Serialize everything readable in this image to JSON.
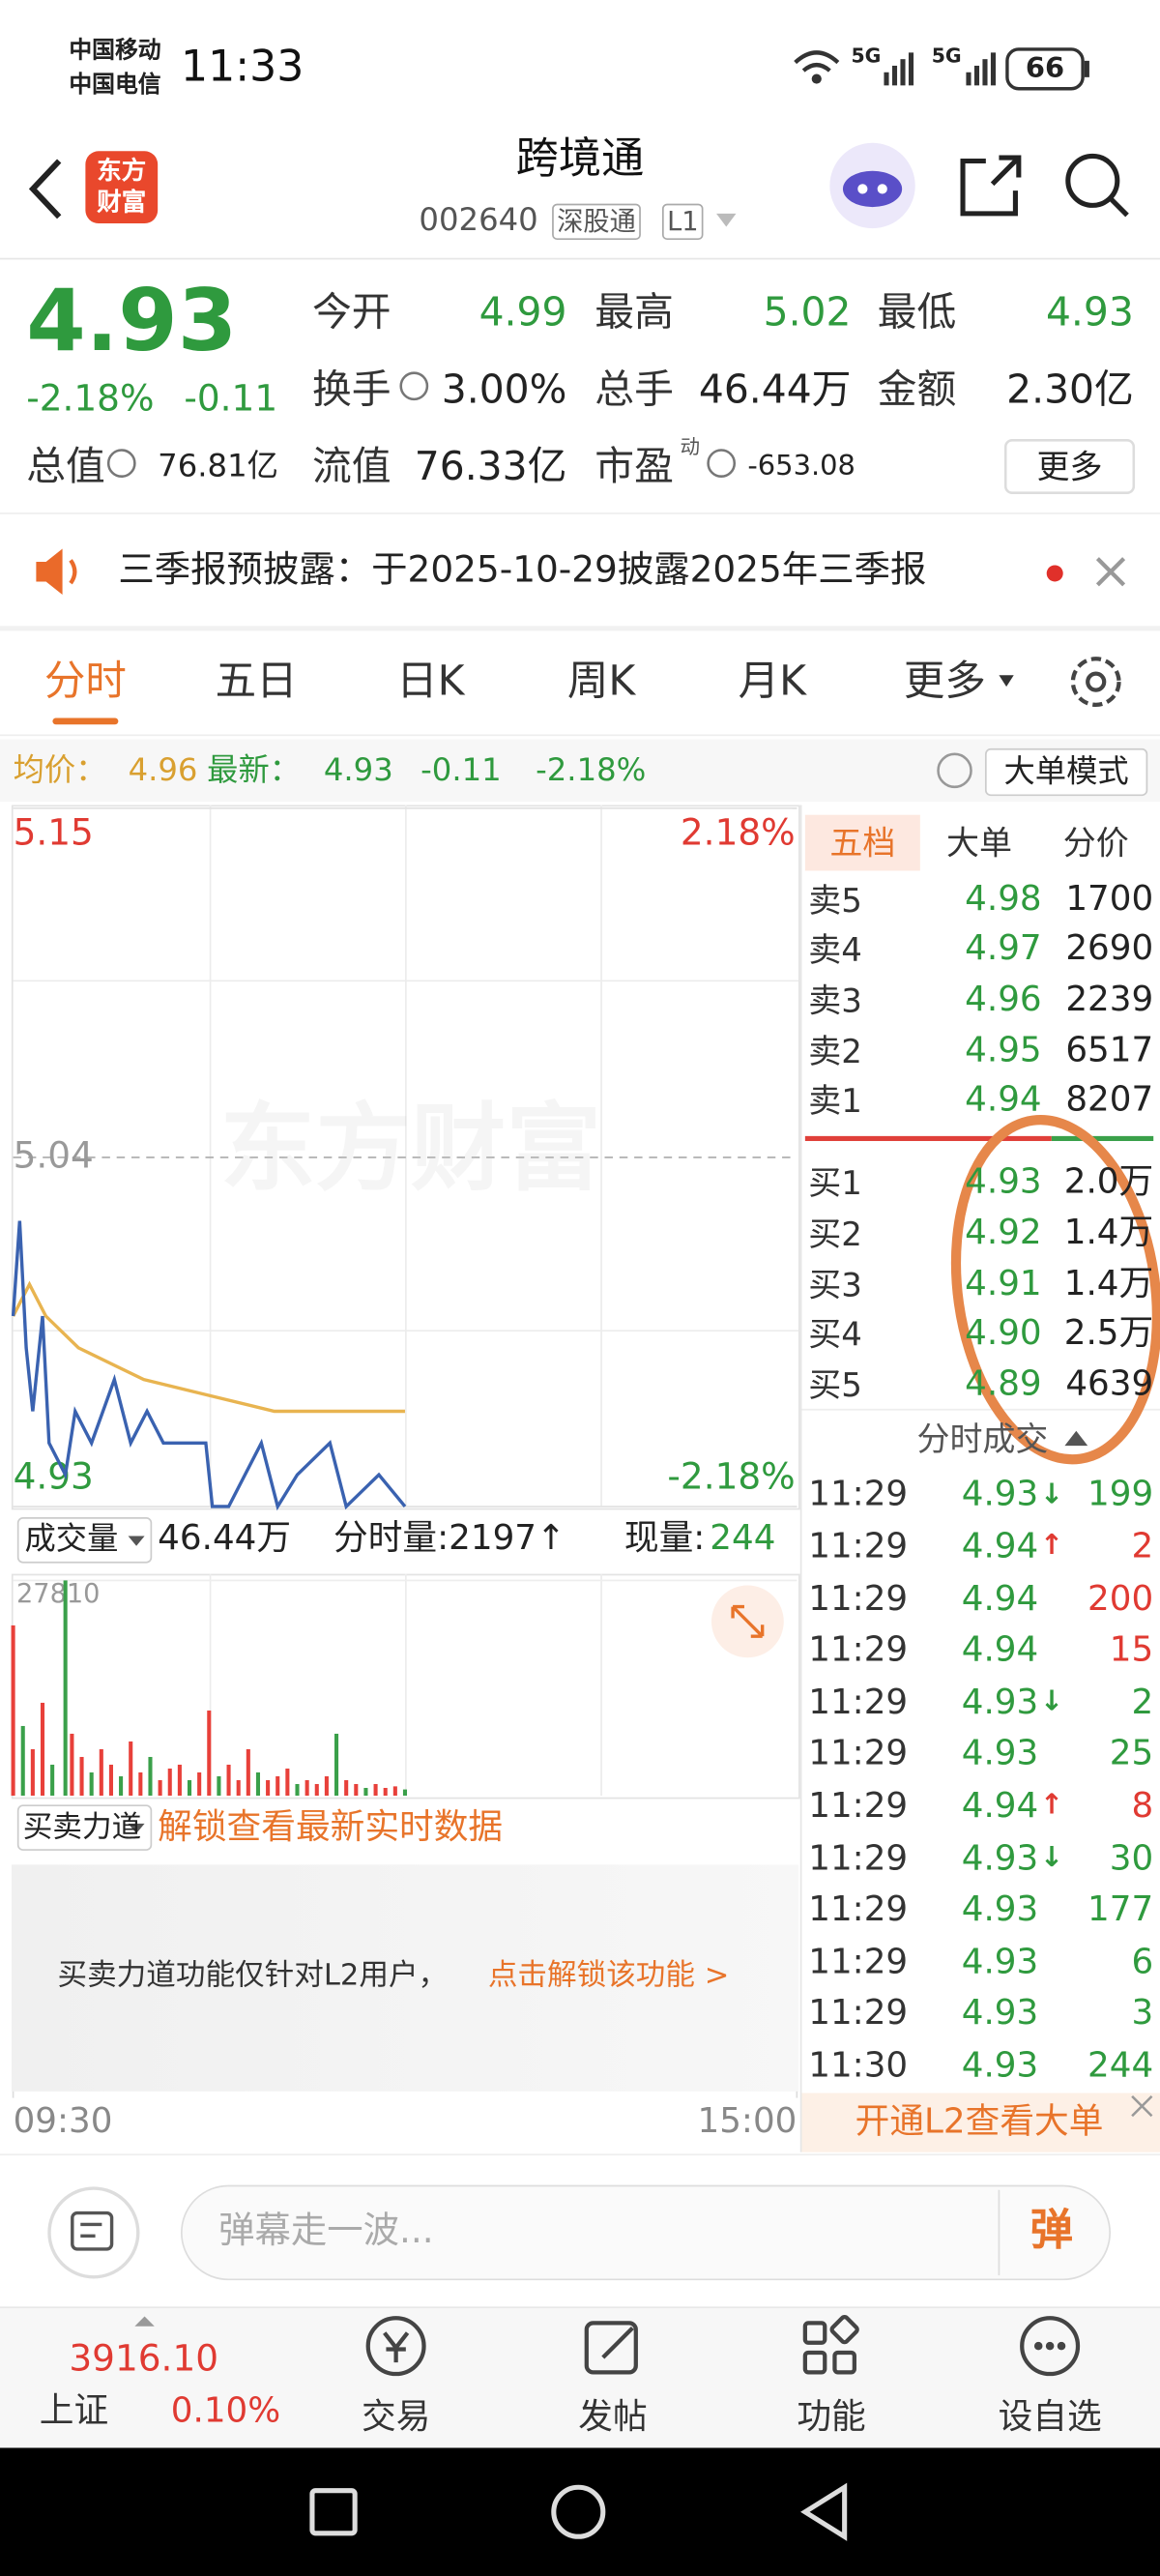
{
  "status_bar": {
    "carriers": [
      "中国移动",
      "中国电信"
    ],
    "time": "11:33",
    "network": [
      "5G",
      "5G"
    ],
    "battery": "66"
  },
  "header": {
    "logo": [
      "东方",
      "财富"
    ],
    "title": "跨境通",
    "code": "002640",
    "tags": [
      "深股通",
      "L1"
    ]
  },
  "quote": {
    "price": "4.93",
    "change_pct": "-2.18%",
    "change": "-0.11",
    "fields": [
      {
        "label": "今开",
        "value": "4.99"
      },
      {
        "label": "最高",
        "value": "5.02"
      },
      {
        "label": "最低",
        "value": "4.93"
      },
      {
        "label": "换手",
        "value": "3.00%"
      },
      {
        "label": "总手",
        "value": "46.44万"
      },
      {
        "label": "金额",
        "value": "2.30亿"
      },
      {
        "label": "总值",
        "value": "76.81亿"
      },
      {
        "label": "流值",
        "value": "76.33亿"
      },
      {
        "label": "市盈",
        "sup": "动",
        "value": "-653.08"
      }
    ],
    "more": "更多"
  },
  "notice": {
    "text": "三季报预披露：于2025-10-29披露2025年三季报"
  },
  "tabs": [
    "分时",
    "五日",
    "日K",
    "周K",
    "月K",
    "更多"
  ],
  "info_bar": {
    "avg_label": "均价：",
    "avg": "4.96",
    "latest_label": "最新：",
    "latest": "4.93",
    "change": "-0.11",
    "change_pct": "-2.18%",
    "mode": "大单模式"
  },
  "watermark": "东方财富",
  "chart_data": [
    {
      "type": "line",
      "xlim": [
        0,
        240
      ],
      "xticks": [
        {
          "value": 0,
          "label": "09:30"
        },
        {
          "value": 240,
          "label": "15:00"
        }
      ],
      "ylim": [
        4.93,
        5.15
      ],
      "yticks": [
        5.15,
        5.04,
        4.93
      ],
      "y2lim": [
        -2.18,
        2.18
      ],
      "y2ticks": [
        {
          "value": 2.18,
          "label": "2.18%"
        },
        {
          "value": -2.18,
          "label": "-2.18%"
        }
      ],
      "series": [
        {
          "color": "#3a62b0",
          "x": [
            0,
            2,
            4,
            6,
            9,
            11,
            16,
            19,
            24,
            31,
            36,
            41,
            46,
            51,
            59,
            61,
            66,
            71,
            76,
            81,
            87,
            97,
            102,
            112,
            120
          ],
          "values": [
            4.99,
            5.02,
            4.98,
            4.96,
            4.99,
            4.95,
            4.94,
            4.96,
            4.95,
            4.97,
            4.95,
            4.96,
            4.95,
            4.95,
            4.95,
            4.93,
            4.93,
            4.94,
            4.95,
            4.93,
            4.94,
            4.95,
            4.93,
            4.94,
            4.93
          ]
        },
        {
          "color": "#e8b450",
          "x": [
            0,
            5,
            10,
            20,
            40,
            60,
            80,
            100,
            120
          ],
          "values": [
            4.99,
            5.0,
            4.99,
            4.98,
            4.97,
            4.965,
            4.96,
            4.96,
            4.96
          ]
        }
      ]
    },
    {
      "type": "bar",
      "xlim": [
        0,
        240
      ],
      "ylim": [
        0,
        27810
      ],
      "yticks": [
        27810
      ],
      "x": [
        0,
        3,
        6,
        9,
        12,
        16,
        18,
        21,
        24,
        27,
        30,
        33,
        36,
        39,
        42,
        45,
        48,
        51,
        54,
        57,
        60,
        63,
        66,
        69,
        72,
        75,
        78,
        81,
        84,
        87,
        90,
        93,
        96,
        99,
        102,
        105,
        108,
        111,
        114,
        117,
        120
      ],
      "values": [
        22000,
        9000,
        6000,
        12000,
        4000,
        27810,
        8000,
        5000,
        3000,
        6000,
        4000,
        2500,
        7000,
        3000,
        5000,
        2000,
        3500,
        4000,
        2000,
        3000,
        11000,
        2500,
        4000,
        2000,
        6000,
        3000,
        2000,
        2500,
        3500,
        1500,
        2000,
        1500,
        2500,
        8000,
        2000,
        1500,
        1000,
        1500,
        1000,
        1200,
        800
      ],
      "colors": [
        "#e8403a",
        "#3aa04a",
        "#e8403a",
        "#e8403a",
        "#3aa04a",
        "#3aa04a",
        "#e8403a",
        "#e8403a",
        "#3aa04a",
        "#e8403a",
        "#e8403a",
        "#3aa04a",
        "#e8403a",
        "#e8403a",
        "#3aa04a",
        "#e8403a",
        "#e8403a",
        "#e8403a",
        "#3aa04a",
        "#e8403a",
        "#e8403a",
        "#3aa04a",
        "#e8403a",
        "#e8403a",
        "#e8403a",
        "#3aa04a",
        "#e8403a",
        "#e8403a",
        "#e8403a",
        "#3aa04a",
        "#e8403a",
        "#e8403a",
        "#e8403a",
        "#3aa04a",
        "#e8403a",
        "#e8403a",
        "#3aa04a",
        "#e8403a",
        "#e8403a",
        "#e8403a",
        "#3aa04a"
      ]
    }
  ],
  "volume_bar": {
    "label": "成交量",
    "total": "46.44万",
    "minute_volume": "分时量:2197↑",
    "current_label": "现量:",
    "current": "244"
  },
  "power": {
    "label": "买卖力道",
    "unlock": "解锁查看最新实时数据",
    "note": "买卖力道功能仅针对L2用户，",
    "link": "点击解锁该功能 >"
  },
  "order_book": {
    "tabs": [
      "五档",
      "大单",
      "分价"
    ],
    "asks": [
      {
        "label": "卖5",
        "price": "4.98",
        "volume": "1700"
      },
      {
        "label": "卖4",
        "price": "4.97",
        "volume": "2690"
      },
      {
        "label": "卖3",
        "price": "4.96",
        "volume": "2239"
      },
      {
        "label": "卖2",
        "price": "4.95",
        "volume": "6517"
      },
      {
        "label": "卖1",
        "price": "4.94",
        "volume": "8207"
      }
    ],
    "bids": [
      {
        "label": "买1",
        "price": "4.93",
        "volume": "2.0万"
      },
      {
        "label": "买2",
        "price": "4.92",
        "volume": "1.4万"
      },
      {
        "label": "买3",
        "price": "4.91",
        "volume": "1.4万"
      },
      {
        "label": "买4",
        "price": "4.90",
        "volume": "2.5万"
      },
      {
        "label": "买5",
        "price": "4.89",
        "volume": "4639"
      }
    ],
    "trades_title": "分时成交",
    "trades": [
      {
        "time": "11:29",
        "price": "4.93",
        "arrow": "↓",
        "volume": "199",
        "volume_color": "#2f9a3e"
      },
      {
        "time": "11:29",
        "price": "4.94",
        "arrow": "↑",
        "volume": "2",
        "volume_color": "#e03a32"
      },
      {
        "time": "11:29",
        "price": "4.94",
        "volume": "200",
        "volume_color": "#e03a32"
      },
      {
        "time": "11:29",
        "price": "4.94",
        "volume": "15",
        "volume_color": "#e03a32"
      },
      {
        "time": "11:29",
        "price": "4.93",
        "arrow": "↓",
        "volume": "2",
        "volume_color": "#2f9a3e"
      },
      {
        "time": "11:29",
        "price": "4.93",
        "volume": "25",
        "volume_color": "#2f9a3e"
      },
      {
        "time": "11:29",
        "price": "4.94",
        "arrow": "↑",
        "volume": "8",
        "volume_color": "#e03a32"
      },
      {
        "time": "11:29",
        "price": "4.93",
        "arrow": "↓",
        "volume": "30",
        "volume_color": "#2f9a3e"
      },
      {
        "time": "11:29",
        "price": "4.93",
        "volume": "177",
        "volume_color": "#2f9a3e"
      },
      {
        "time": "11:29",
        "price": "4.93",
        "volume": "6",
        "volume_color": "#2f9a3e"
      },
      {
        "time": "11:29",
        "price": "4.93",
        "volume": "3",
        "volume_color": "#2f9a3e"
      },
      {
        "time": "11:30",
        "price": "4.93",
        "volume": "244",
        "volume_color": "#2f9a3e"
      }
    ],
    "l2_banner": "开通L2查看大单"
  },
  "comment": {
    "placeholder": "弹幕走一波...",
    "button": "弹"
  },
  "bottom_nav": {
    "index": {
      "name": "上证",
      "value": "3916.10",
      "change": "0.10%"
    },
    "items": [
      "交易",
      "发帖",
      "功能",
      "设自选"
    ]
  }
}
